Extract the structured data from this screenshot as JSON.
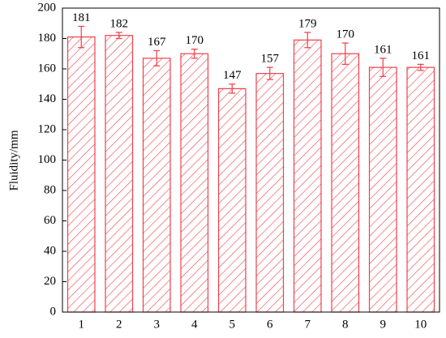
{
  "chart_data": {
    "type": "bar",
    "y_label": "Fluidity/mm",
    "categories": [
      "1",
      "2",
      "3",
      "4",
      "5",
      "6",
      "7",
      "8",
      "9",
      "10"
    ],
    "values": [
      181,
      182,
      167,
      170,
      147,
      157,
      179,
      170,
      161,
      161
    ],
    "errors": [
      7,
      2,
      5,
      3,
      3,
      4,
      5,
      7,
      6,
      2
    ],
    "color": "#f0404a",
    "ylim": [
      0,
      200
    ],
    "yticks": [
      0,
      20,
      40,
      60,
      80,
      100,
      120,
      140,
      160,
      180,
      200
    ]
  }
}
